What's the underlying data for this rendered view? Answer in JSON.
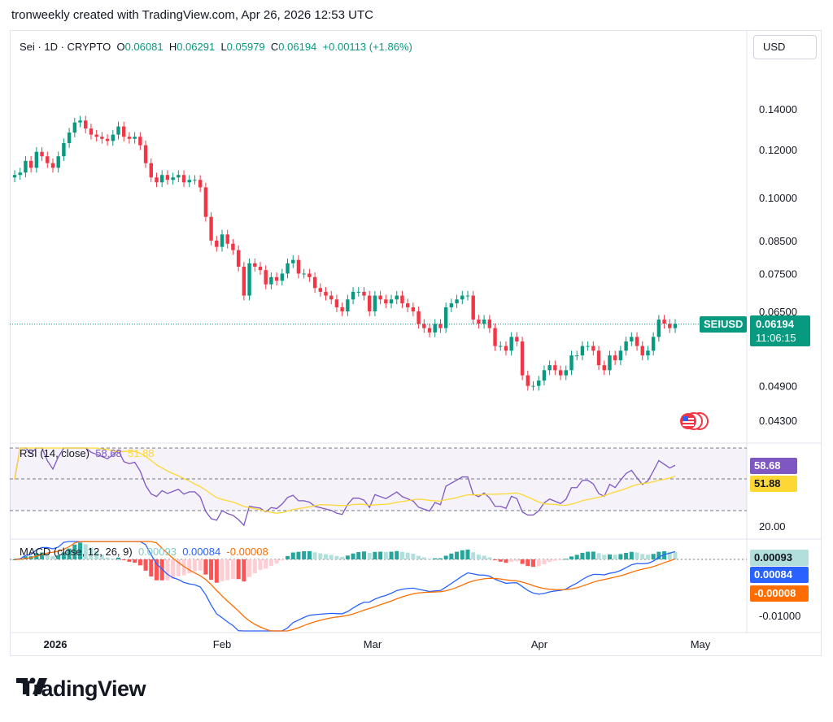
{
  "header": {
    "attribution": "tronweekly created with TradingView.com, Apr 26, 2026 12:53 UTC"
  },
  "currency_button": "USD",
  "legend": {
    "symbol": "Sei · 1D · CRYPTO",
    "o_label": "O",
    "o_value": "0.06081",
    "h_label": "H",
    "h_value": "0.06291",
    "l_label": "L",
    "l_value": "0.05979",
    "c_label": "C",
    "c_value": "0.06194",
    "change": "+0.00113 (+1.86%)"
  },
  "price_tag": {
    "symbol": "SEIUSD",
    "price": "0.06194",
    "countdown": "11:06:15"
  },
  "rsi_legend": {
    "title": "RSI (14, close)",
    "rsi": "58.68",
    "ma": "51.88"
  },
  "rsi_tags": {
    "rsi": "58.68",
    "ma": "51.88"
  },
  "macd_legend": {
    "title": "MACD (close, 12, 26, 9)",
    "hist": "0.00093",
    "macd": "0.00084",
    "signal": "-0.00008"
  },
  "macd_tags": {
    "hist": "0.00093",
    "macd": "0.00084",
    "signal": "-0.00008"
  },
  "brand": {
    "name": "TradingView"
  },
  "colors": {
    "up": "#089981",
    "down": "#f23645",
    "rsi": "#7e57c2",
    "rsi_ma": "#fdd835",
    "macd": "#2962ff",
    "signal": "#ff6d00",
    "hist_up": "#26a69a",
    "hist_down": "#ff5252"
  },
  "chart_data": [
    {
      "type": "candlestick",
      "title": "Sei · 1D · CRYPTO",
      "x_labels": [
        "2026",
        "Feb",
        "Mar",
        "Apr",
        "May"
      ],
      "y_ticks": [
        "0.14000",
        "0.12000",
        "0.10000",
        "0.08500",
        "0.07500",
        "0.06500",
        "0.04900",
        "0.04300"
      ],
      "y_scale": "log",
      "last_price": 0.06194,
      "closes": [
        0.109,
        0.11,
        0.115,
        0.112,
        0.119,
        0.117,
        0.114,
        0.112,
        0.117,
        0.123,
        0.128,
        0.133,
        0.134,
        0.13,
        0.127,
        0.126,
        0.125,
        0.124,
        0.127,
        0.131,
        0.126,
        0.125,
        0.126,
        0.122,
        0.114,
        0.108,
        0.106,
        0.109,
        0.107,
        0.108,
        0.109,
        0.106,
        0.107,
        0.107,
        0.104,
        0.093,
        0.085,
        0.083,
        0.087,
        0.084,
        0.082,
        0.077,
        0.069,
        0.078,
        0.077,
        0.076,
        0.072,
        0.074,
        0.073,
        0.075,
        0.078,
        0.079,
        0.075,
        0.075,
        0.074,
        0.071,
        0.07,
        0.069,
        0.068,
        0.066,
        0.065,
        0.068,
        0.07,
        0.07,
        0.069,
        0.065,
        0.069,
        0.068,
        0.067,
        0.068,
        0.069,
        0.067,
        0.066,
        0.065,
        0.062,
        0.061,
        0.06,
        0.062,
        0.061,
        0.066,
        0.067,
        0.068,
        0.069,
        0.069,
        0.063,
        0.062,
        0.063,
        0.061,
        0.057,
        0.057,
        0.056,
        0.059,
        0.058,
        0.051,
        0.049,
        0.049,
        0.05,
        0.052,
        0.053,
        0.052,
        0.051,
        0.052,
        0.055,
        0.055,
        0.057,
        0.057,
        0.056,
        0.053,
        0.052,
        0.055,
        0.054,
        0.056,
        0.058,
        0.059,
        0.057,
        0.055,
        0.056,
        0.059,
        0.063,
        0.062,
        0.061,
        0.062
      ]
    },
    {
      "type": "line",
      "title": "RSI (14, close)",
      "y_ticks": [
        "20.00"
      ],
      "series": [
        {
          "name": "RSI",
          "last": 58.68
        },
        {
          "name": "MA",
          "last": 51.88
        }
      ]
    },
    {
      "type": "bar",
      "title": "MACD (close, 12, 26, 9)",
      "y_ticks": [
        "-0.01000"
      ],
      "series": [
        {
          "name": "Histogram",
          "last": 0.00093
        },
        {
          "name": "MACD",
          "last": 0.00084
        },
        {
          "name": "Signal",
          "last": -8e-05
        }
      ]
    }
  ]
}
